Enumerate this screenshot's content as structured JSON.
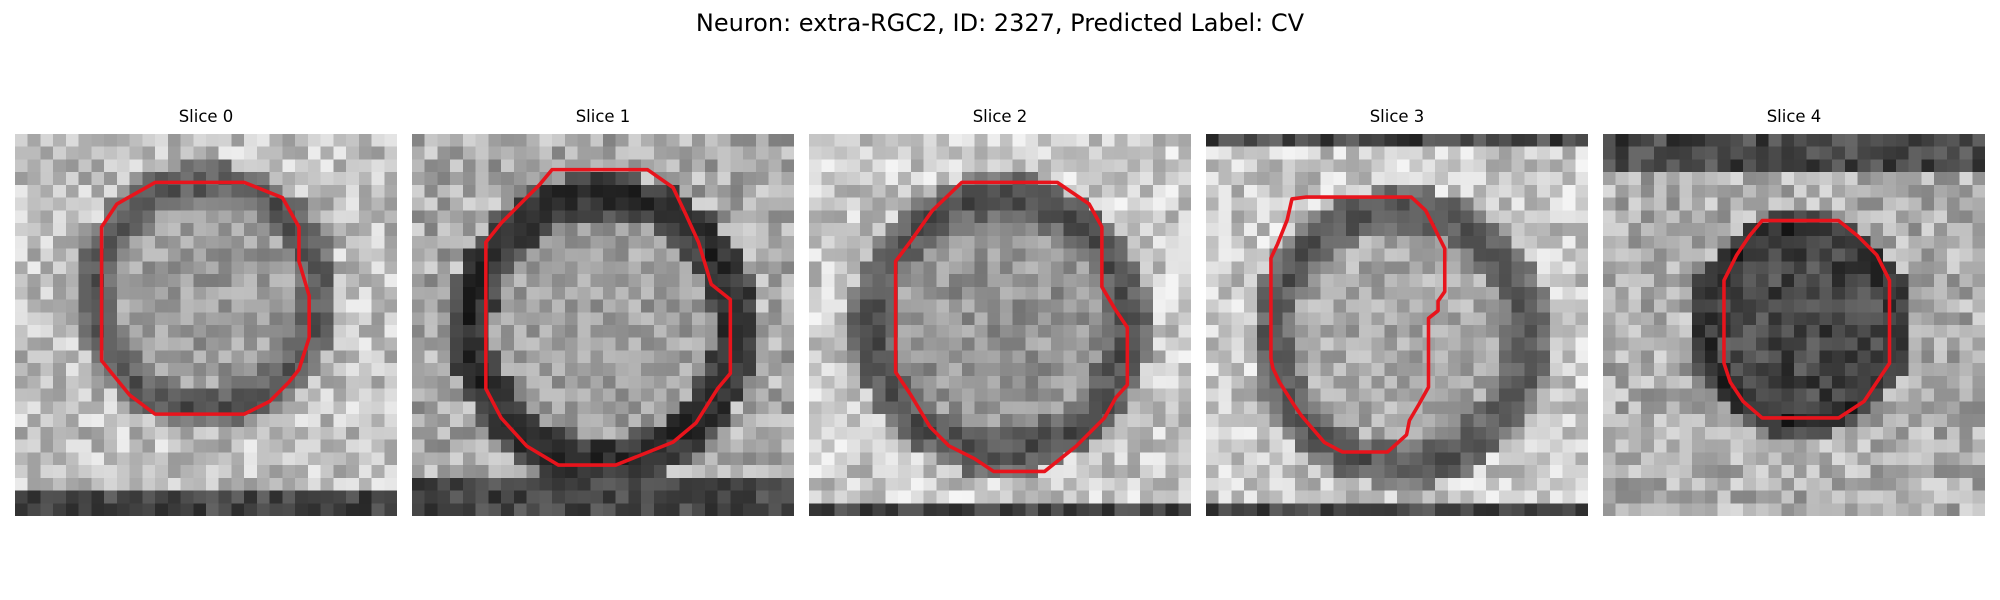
{
  "figure": {
    "title": "Neuron: extra-RGC2, ID: 2327, Predicted Label: CV"
  },
  "colors": {
    "contour": "#e8141c",
    "background": "#ffffff"
  },
  "panels": [
    {
      "title": "Slice 0",
      "tone": "light"
    },
    {
      "title": "Slice 1",
      "tone": "light"
    },
    {
      "title": "Slice 2",
      "tone": "light"
    },
    {
      "title": "Slice 3",
      "tone": "light"
    },
    {
      "title": "Slice 4",
      "tone": "dark"
    }
  ]
}
